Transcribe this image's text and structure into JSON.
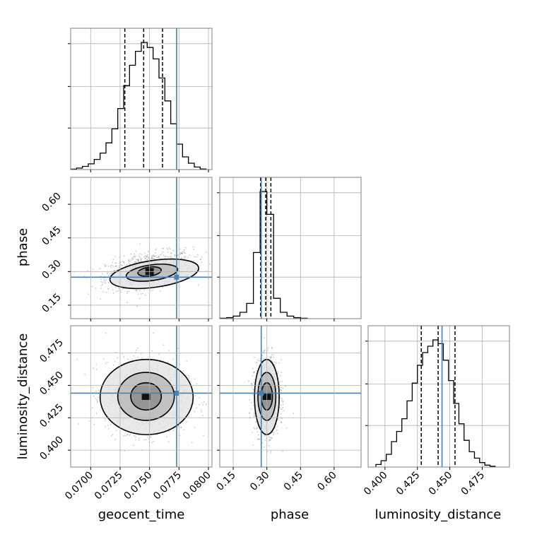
{
  "chart_data": {
    "type": "corner",
    "parameters": [
      "geocent_time",
      "phase",
      "luminosity_distance"
    ],
    "truths": [
      0.0773,
      0.275,
      0.444
    ],
    "truth_color": "#4682b4",
    "ranges": {
      "geocent_time": [
        0.0683,
        0.0803
      ],
      "phase": [
        0.09,
        0.72
      ],
      "luminosity_distance": [
        0.387,
        0.496
      ]
    },
    "ticks": {
      "geocent_time": [
        {
          "v": 0.07,
          "t": "0.0700"
        },
        {
          "v": 0.0725,
          "t": "0.0725"
        },
        {
          "v": 0.075,
          "t": "0.0750"
        },
        {
          "v": 0.0775,
          "t": "0.0775"
        },
        {
          "v": 0.08,
          "t": "0.0800"
        }
      ],
      "phase": [
        {
          "v": 0.15,
          "t": "0.15"
        },
        {
          "v": 0.3,
          "t": "0.30"
        },
        {
          "v": 0.45,
          "t": "0.45"
        },
        {
          "v": 0.6,
          "t": "0.60"
        }
      ],
      "luminosity_distance": [
        {
          "v": 0.4,
          "t": "0.400"
        },
        {
          "v": 0.425,
          "t": "0.425"
        },
        {
          "v": 0.45,
          "t": "0.450"
        },
        {
          "v": 0.475,
          "t": "0.475"
        }
      ]
    },
    "histograms": {
      "geocent_time": {
        "quantiles": [
          0.0729,
          0.0745,
          0.0761
        ],
        "bins": [
          [
            0.0683,
            0.0688,
            0.003
          ],
          [
            0.0688,
            0.0693,
            0.012
          ],
          [
            0.0693,
            0.0698,
            0.025
          ],
          [
            0.0698,
            0.0703,
            0.045
          ],
          [
            0.0703,
            0.0708,
            0.08
          ],
          [
            0.0708,
            0.0713,
            0.13
          ],
          [
            0.0713,
            0.0718,
            0.21
          ],
          [
            0.0718,
            0.0723,
            0.32
          ],
          [
            0.0723,
            0.0728,
            0.48
          ],
          [
            0.0728,
            0.0733,
            0.66
          ],
          [
            0.0733,
            0.0738,
            0.82
          ],
          [
            0.0738,
            0.0743,
            0.93
          ],
          [
            0.0743,
            0.0748,
            1.0
          ],
          [
            0.0748,
            0.0753,
            0.96
          ],
          [
            0.0753,
            0.0758,
            0.87
          ],
          [
            0.0758,
            0.0763,
            0.72
          ],
          [
            0.0763,
            0.0768,
            0.54
          ],
          [
            0.0768,
            0.0773,
            0.36
          ],
          [
            0.0773,
            0.0778,
            0.2
          ],
          [
            0.0778,
            0.0783,
            0.1
          ],
          [
            0.0783,
            0.0788,
            0.05
          ],
          [
            0.0788,
            0.0793,
            0.02
          ],
          [
            0.0793,
            0.0798,
            0.005
          ]
        ]
      },
      "phase": {
        "quantiles": [
          0.272,
          0.295,
          0.318
        ],
        "bins": [
          [
            0.09,
            0.12,
            0.003
          ],
          [
            0.12,
            0.15,
            0.008
          ],
          [
            0.15,
            0.18,
            0.02
          ],
          [
            0.18,
            0.21,
            0.05
          ],
          [
            0.21,
            0.24,
            0.12
          ],
          [
            0.24,
            0.27,
            0.52
          ],
          [
            0.27,
            0.3,
            1.0
          ],
          [
            0.3,
            0.33,
            0.82
          ],
          [
            0.33,
            0.36,
            0.16
          ],
          [
            0.36,
            0.39,
            0.05
          ],
          [
            0.39,
            0.42,
            0.02
          ],
          [
            0.42,
            0.45,
            0.008
          ],
          [
            0.45,
            0.48,
            0.003
          ]
        ]
      },
      "luminosity_distance": {
        "quantiles": [
          0.428,
          0.441,
          0.454
        ],
        "bins": [
          [
            0.393,
            0.397,
            0.02
          ],
          [
            0.397,
            0.401,
            0.05
          ],
          [
            0.401,
            0.405,
            0.1
          ],
          [
            0.405,
            0.409,
            0.2
          ],
          [
            0.409,
            0.413,
            0.28
          ],
          [
            0.413,
            0.417,
            0.38
          ],
          [
            0.417,
            0.421,
            0.52
          ],
          [
            0.421,
            0.425,
            0.66
          ],
          [
            0.425,
            0.429,
            0.8
          ],
          [
            0.429,
            0.433,
            0.9
          ],
          [
            0.433,
            0.437,
            0.95
          ],
          [
            0.437,
            0.441,
            1.0
          ],
          [
            0.441,
            0.445,
            0.97
          ],
          [
            0.445,
            0.449,
            0.84
          ],
          [
            0.449,
            0.453,
            0.68
          ],
          [
            0.453,
            0.457,
            0.5
          ],
          [
            0.457,
            0.461,
            0.34
          ],
          [
            0.461,
            0.465,
            0.21
          ],
          [
            0.465,
            0.469,
            0.12
          ],
          [
            0.469,
            0.473,
            0.07
          ],
          [
            0.473,
            0.477,
            0.035
          ],
          [
            0.477,
            0.481,
            0.015
          ],
          [
            0.481,
            0.485,
            0.006
          ]
        ]
      }
    },
    "joint": [
      {
        "x": "geocent_time",
        "y": "phase",
        "center": [
          0.075,
          0.305
        ],
        "sigma": [
          0.0016,
          0.035
        ],
        "rho": 0.35,
        "n_points": 1100,
        "contours": [
          [
            0.0716,
            0.0792,
            0.23,
            0.35
          ],
          [
            0.073,
            0.0774,
            0.26,
            0.33
          ],
          [
            0.074,
            0.076,
            0.28,
            0.32
          ]
        ]
      },
      {
        "x": "geocent_time",
        "y": "luminosity_distance",
        "center": [
          0.0747,
          0.441
        ],
        "sigma": [
          0.0015,
          0.012
        ],
        "rho": 0.0,
        "n_points": 1300,
        "contours": [
          [
            0.0708,
            0.0787,
            0.412,
            0.47
          ],
          [
            0.0723,
            0.0771,
            0.423,
            0.46
          ],
          [
            0.0734,
            0.076,
            0.431,
            0.452
          ]
        ]
      },
      {
        "x": "phase",
        "y": "luminosity_distance",
        "center": [
          0.3,
          0.441
        ],
        "sigma": [
          0.024,
          0.012
        ],
        "rho": 0.0,
        "n_points": 1300,
        "contours": [
          [
            0.245,
            0.355,
            0.412,
            0.47
          ],
          [
            0.26,
            0.34,
            0.423,
            0.46
          ],
          [
            0.275,
            0.325,
            0.431,
            0.452
          ]
        ]
      }
    ]
  }
}
